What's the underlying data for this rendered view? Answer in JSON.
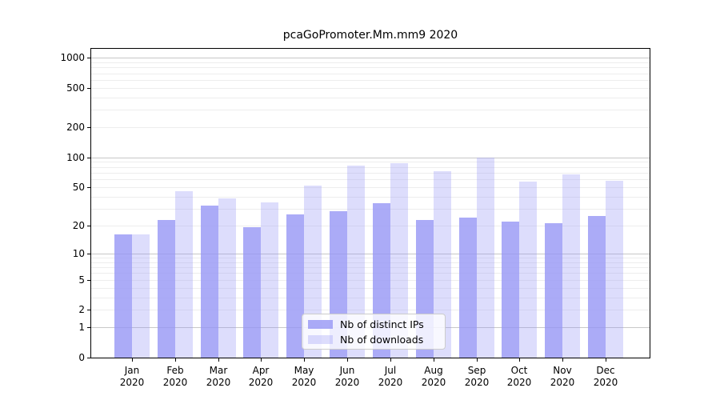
{
  "figure": {
    "title": "pcaGoPromoter.Mm.mm9 2020"
  },
  "chart_data": {
    "type": "bar",
    "title": "pcaGoPromoter.Mm.mm9 2020",
    "categories": [
      "Jan",
      "Feb",
      "Mar",
      "Apr",
      "May",
      "Jun",
      "Jul",
      "Aug",
      "Sep",
      "Oct",
      "Nov",
      "Dec"
    ],
    "category_year": "2020",
    "series": [
      {
        "name": "Nb of distinct IPs",
        "color": "rgba(150,150,245,0.8)",
        "values": [
          16,
          23,
          32,
          19,
          26,
          28,
          34,
          23,
          24,
          22,
          21,
          25
        ]
      },
      {
        "name": "Nb of downloads",
        "color": "rgba(150,150,245,0.32)",
        "values": [
          16,
          45,
          38,
          35,
          52,
          83,
          88,
          72,
          100,
          57,
          67,
          58
        ]
      }
    ],
    "xlabel": "",
    "ylabel": "",
    "y_scale": "log10(value+1)",
    "y_axis_ticks": [
      0,
      1,
      2,
      5,
      10,
      20,
      50,
      100,
      200,
      500,
      1000
    ],
    "y_major_gridlines": [
      1,
      10,
      100,
      1000
    ],
    "y_minor_gridline_steps": [
      2,
      3,
      4,
      5,
      6,
      7,
      8,
      9
    ],
    "y_max": 1230,
    "grid": true,
    "legend_position": "lower center"
  },
  "colors": {
    "bar_base": "#9696f5",
    "major_grid": "#c8c8c8",
    "minor_grid": "#ededed",
    "spine": "#000000",
    "text": "#000000",
    "legend_border": "#cccccc",
    "legend_background": "rgba(255,255,255,0.8)"
  }
}
